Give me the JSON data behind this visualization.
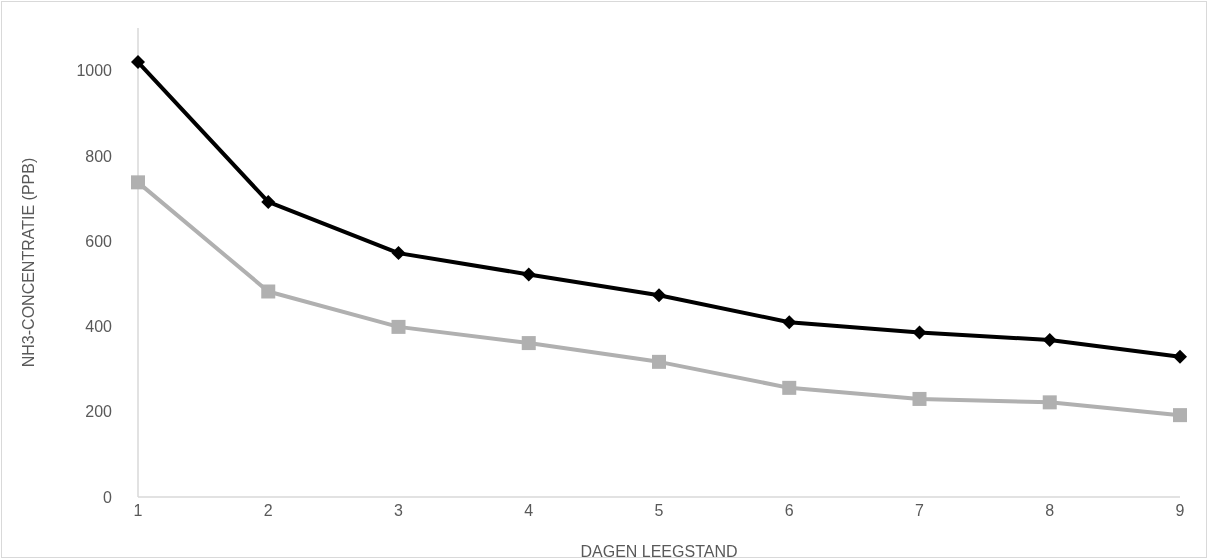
{
  "chart_data": {
    "type": "line",
    "xlabel": "DAGEN LEEGSTAND",
    "ylabel": "NH3-CONCENTRATIE (PPB)",
    "categories": [
      "1",
      "2",
      "3",
      "4",
      "5",
      "6",
      "7",
      "8",
      "9"
    ],
    "series": [
      {
        "color": "#000000",
        "marker": "diamond",
        "values": [
          1020,
          692,
          572,
          522,
          473,
          410,
          386,
          368,
          329
        ]
      },
      {
        "color": "#b0b0b0",
        "marker": "square",
        "values": [
          738,
          482,
          399,
          361,
          317,
          256,
          230,
          222,
          192
        ]
      }
    ],
    "ylim": [
      0,
      1100
    ],
    "yticks": [
      0,
      200,
      400,
      600,
      800,
      1000
    ],
    "grid": false,
    "legend": false,
    "line_style": "solid"
  }
}
